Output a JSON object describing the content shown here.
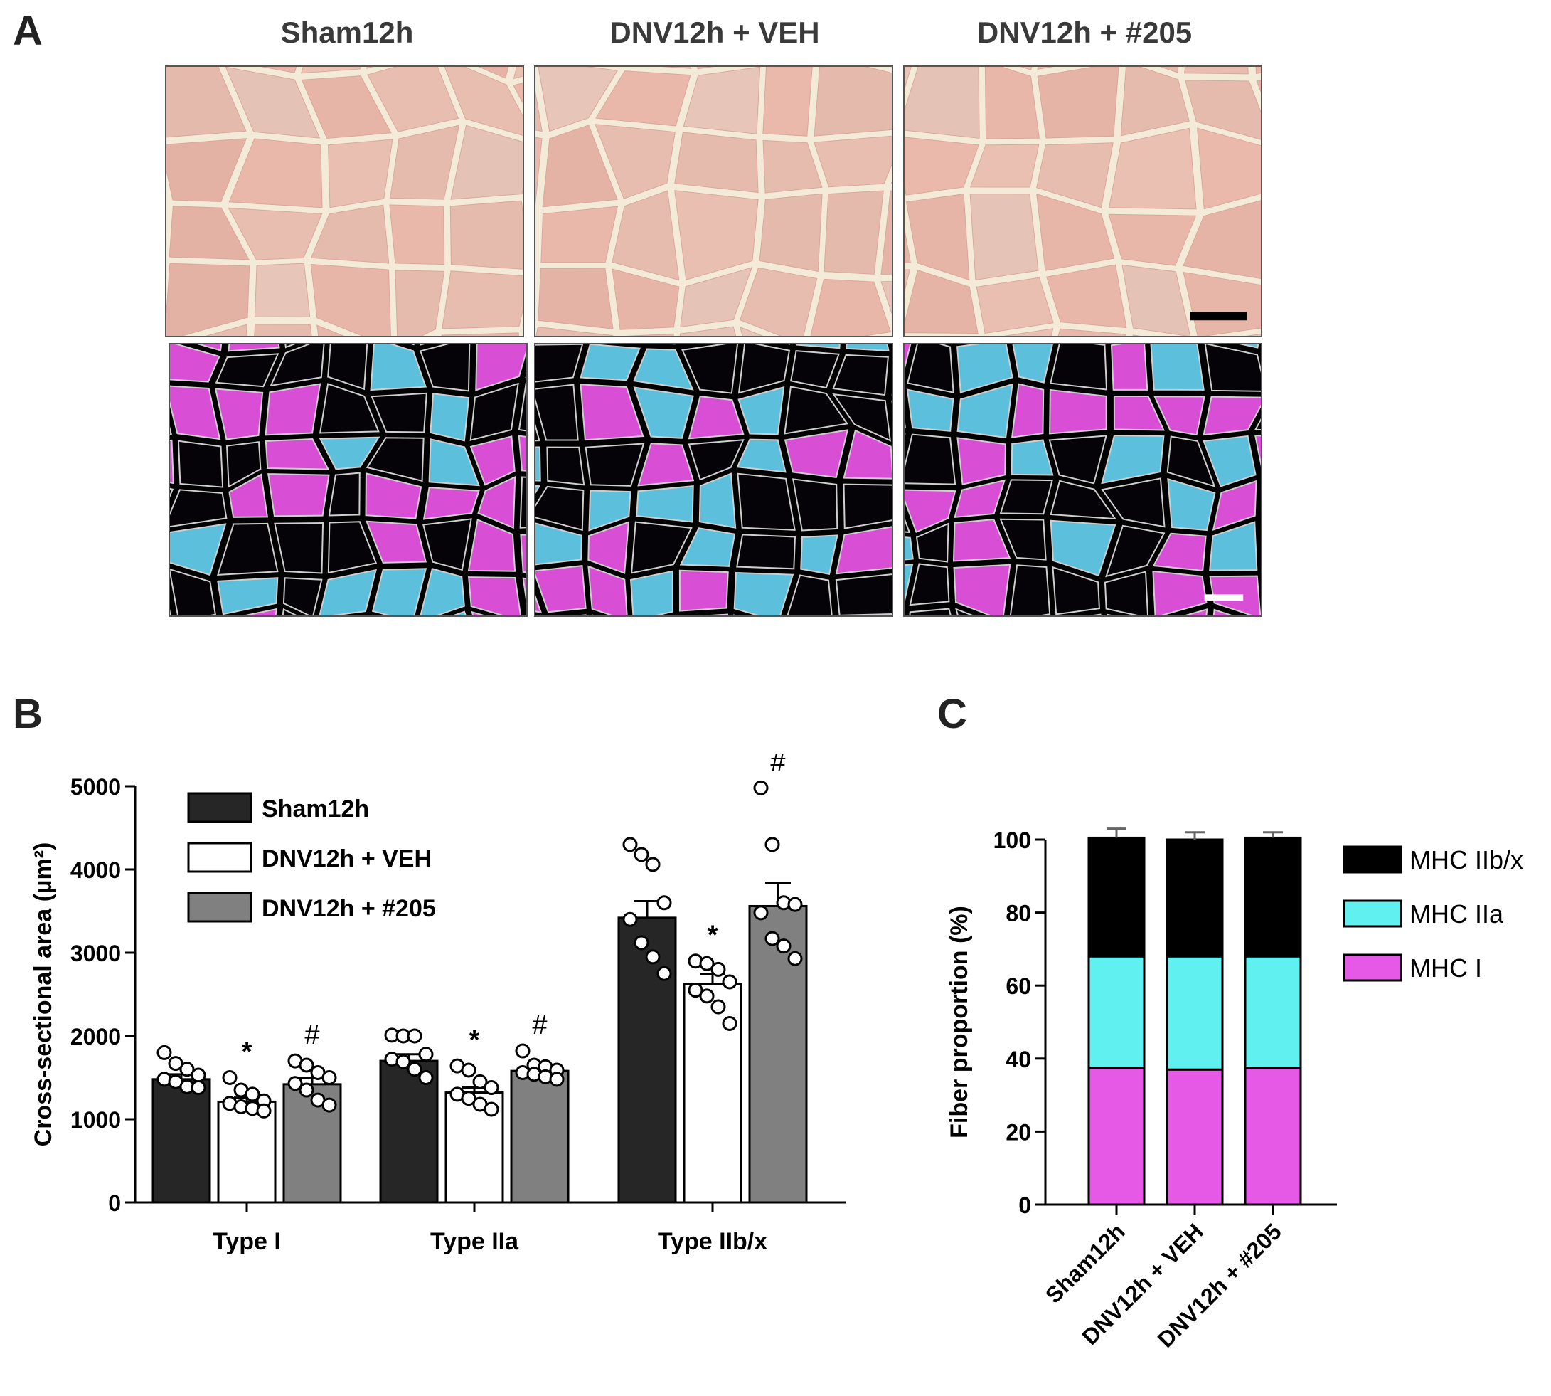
{
  "panels": {
    "a": "A",
    "b": "B",
    "c": "C"
  },
  "columns": [
    "Sham12h",
    "DNV12h + VEH",
    "DNV12h + #205"
  ],
  "colors": {
    "he_background": "#ecbcae",
    "he_stroma": "#f3ead8",
    "fluor_background": "#000000",
    "magenta": "#d84fd6",
    "cyan": "#5cc0dc",
    "membrane": "#cfcfcf",
    "sham_bar": "#262626",
    "veh_bar": "#ffffff",
    "drug_bar": "#808080",
    "mhc_iibx": "#000000",
    "mhc_iia": "#60f0f0",
    "mhc_i": "#e658e6"
  },
  "chart_data": [
    {
      "type": "bar",
      "panel": "B",
      "ylabel": "Cross-sectional area (µm²)",
      "ylim": [
        0,
        5000
      ],
      "yticks": [
        0,
        1000,
        2000,
        3000,
        4000,
        5000
      ],
      "categories": [
        "Type I",
        "Type IIa",
        "Type IIb/x"
      ],
      "legend": [
        "Sham12h",
        "DNV12h + VEH",
        "DNV12h + #205"
      ],
      "series": [
        {
          "name": "Sham12h",
          "values": [
            1480,
            1700,
            3420
          ],
          "sem": [
            60,
            80,
            200
          ],
          "points": [
            [
              1800,
              1670,
              1600,
              1530,
              1480,
              1450,
              1390,
              1380
            ],
            [
              2010,
              2000,
              2000,
              1780,
              1720,
              1690,
              1600,
              1500
            ],
            [
              4300,
              4180,
              4060,
              3600,
              3400,
              3120,
              2950,
              2750
            ]
          ]
        },
        {
          "name": "DNV12h + VEH",
          "values": [
            1210,
            1320,
            2620
          ],
          "sem": [
            50,
            60,
            120
          ],
          "points": [
            [
              1500,
              1350,
              1300,
              1220,
              1190,
              1150,
              1130,
              1100
            ],
            [
              1640,
              1590,
              1450,
              1380,
              1300,
              1250,
              1180,
              1120
            ],
            [
              2900,
              2870,
              2800,
              2650,
              2550,
              2480,
              2350,
              2150
            ]
          ]
        },
        {
          "name": "DNV12h + #205",
          "values": [
            1420,
            1580,
            3560
          ],
          "sem": [
            80,
            50,
            280
          ],
          "points": [
            [
              1700,
              1650,
              1560,
              1500,
              1430,
              1350,
              1230,
              1170
            ],
            [
              1820,
              1650,
              1630,
              1590,
              1560,
              1540,
              1510,
              1480
            ],
            [
              4980,
              4300,
              3600,
              3580,
              3480,
              3170,
              3080,
              2930
            ]
          ]
        }
      ],
      "annotations": [
        {
          "category": "Type I",
          "series": "DNV12h + VEH",
          "text": "*"
        },
        {
          "category": "Type I",
          "series": "DNV12h + #205",
          "text": "#"
        },
        {
          "category": "Type IIa",
          "series": "DNV12h + VEH",
          "text": "*"
        },
        {
          "category": "Type IIa",
          "series": "DNV12h + #205",
          "text": "#"
        },
        {
          "category": "Type IIb/x",
          "series": "DNV12h + VEH",
          "text": "*"
        },
        {
          "category": "Type IIb/x",
          "series": "DNV12h + #205",
          "text": "#"
        }
      ]
    },
    {
      "type": "bar",
      "stacked": true,
      "panel": "C",
      "ylabel": "Fiber proportion (%)",
      "ylim": [
        0,
        100
      ],
      "yticks": [
        0,
        20,
        40,
        60,
        80,
        100
      ],
      "categories": [
        "Sham12h",
        "DNV12h + VEH",
        "DNV12h + #205"
      ],
      "series": [
        {
          "name": "MHC I",
          "values": [
            37.5,
            37,
            37.5
          ],
          "sem": [
            1.2,
            2,
            1.5
          ]
        },
        {
          "name": "MHC IIa",
          "values": [
            30.5,
            31,
            30.5
          ],
          "sem": [
            2.5,
            3.5,
            3
          ]
        },
        {
          "name": "MHC IIb/x",
          "values": [
            32.5,
            32,
            32.5
          ],
          "sem": [
            2.5,
            2,
            1.5
          ]
        }
      ],
      "legend": [
        "MHC IIb/x",
        "MHC IIa",
        "MHC I"
      ]
    }
  ]
}
